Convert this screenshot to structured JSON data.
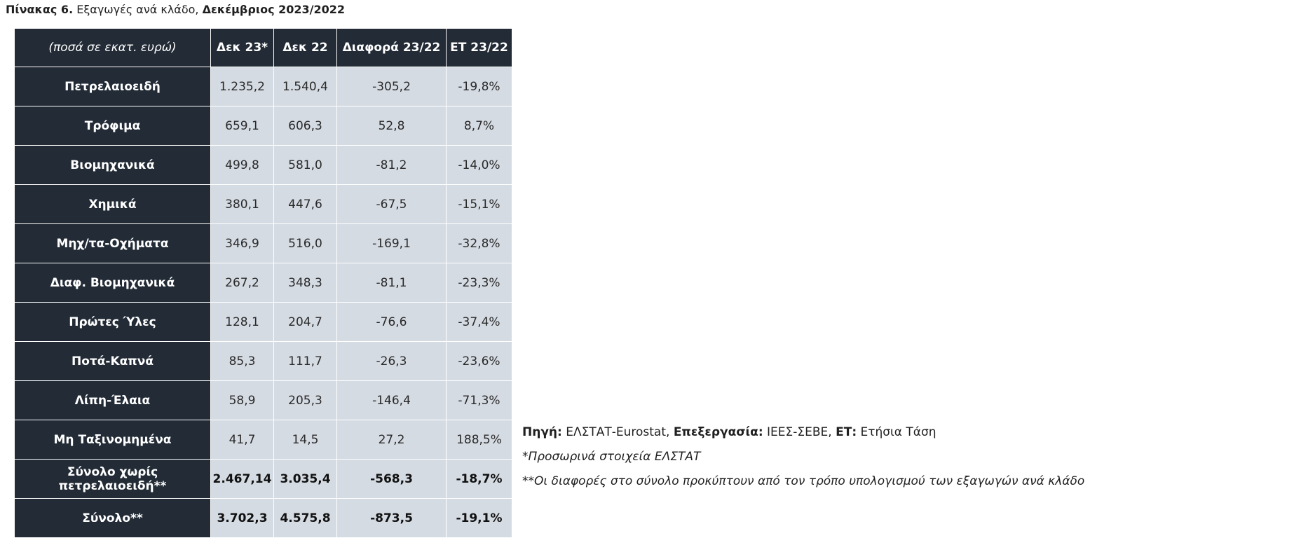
{
  "caption": {
    "label": "Πίνακας 6.",
    "text": "Εξαγωγές ανά κλάδο,",
    "period": "Δεκέμβριος 2023/2022"
  },
  "table": {
    "headers": [
      "(ποσά σε εκατ. ευρώ)",
      "Δεκ 23*",
      "Δεκ 22",
      "Διαφορά 23/22",
      "ΕΤ 23/22"
    ],
    "rows": [
      {
        "label": "Πετρελαιοειδή",
        "dec23": "1.235,2",
        "dec22": "1.540,4",
        "diff": "-305,2",
        "et": "-19,8%"
      },
      {
        "label": "Τρόφιμα",
        "dec23": "659,1",
        "dec22": "606,3",
        "diff": "52,8",
        "et": "8,7%"
      },
      {
        "label": "Βιομηχανικά",
        "dec23": "499,8",
        "dec22": "581,0",
        "diff": "-81,2",
        "et": "-14,0%"
      },
      {
        "label": "Χημικά",
        "dec23": "380,1",
        "dec22": "447,6",
        "diff": "-67,5",
        "et": "-15,1%"
      },
      {
        "label": "Μηχ/τα-Οχήματα",
        "dec23": "346,9",
        "dec22": "516,0",
        "diff": "-169,1",
        "et": "-32,8%"
      },
      {
        "label": "Διαφ. Βιομηχανικά",
        "dec23": "267,2",
        "dec22": "348,3",
        "diff": "-81,1",
        "et": "-23,3%"
      },
      {
        "label": "Πρώτες Ύλες",
        "dec23": "128,1",
        "dec22": "204,7",
        "diff": "-76,6",
        "et": "-37,4%"
      },
      {
        "label": "Ποτά-Καπνά",
        "dec23": "85,3",
        "dec22": "111,7",
        "diff": "-26,3",
        "et": "-23,6%"
      },
      {
        "label": "Λίπη-Έλαια",
        "dec23": "58,9",
        "dec22": "205,3",
        "diff": "-146,4",
        "et": "-71,3%"
      },
      {
        "label": "Μη Ταξινομημένα",
        "dec23": "41,7",
        "dec22": "14,5",
        "diff": "27,2",
        "et": "188,5%"
      }
    ],
    "totals": [
      {
        "label": "Σύνολο χωρίς πετρελαιοειδή**",
        "dec23": "2.467,14",
        "dec22": "3.035,4",
        "diff": "-568,3",
        "et": "-18,7%"
      },
      {
        "label": "Σύνολο**",
        "dec23": "3.702,3",
        "dec22": "4.575,8",
        "diff": "-873,5",
        "et": "-19,1%"
      }
    ]
  },
  "notes": {
    "source_label": "Πηγή:",
    "source_value": "ΕΛΣΤΑΤ-Eurostat,",
    "processing_label": "Επεξεργασία:",
    "processing_value": "ΙΕΕΣ-ΣΕΒΕ,",
    "et_label": "ΕΤ:",
    "et_value": "Ετήσια Τάση",
    "provisional": "*Προσωρινά στοιχεία ΕΛΣΤΑΤ",
    "differences": "**Οι διαφορές στο σύνολο προκύπτουν από τον τρόπο υπολογισμού των εξαγωγών ανά κλάδο"
  }
}
